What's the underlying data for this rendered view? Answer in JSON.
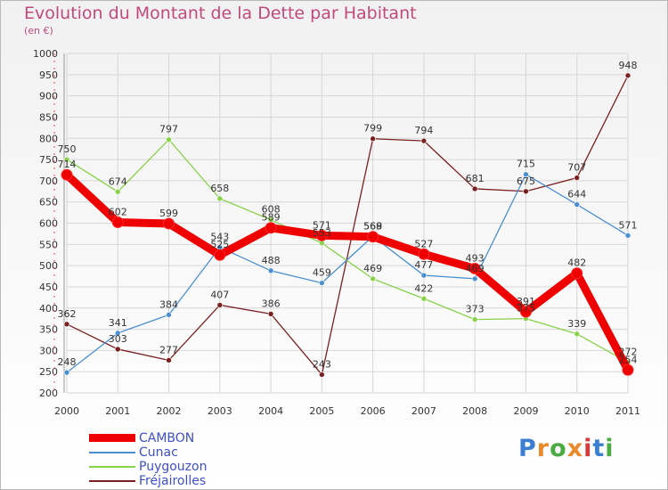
{
  "header": {
    "title": "Evolution du Montant de la Dette par Habitant",
    "unit": "(en €)"
  },
  "logo": {
    "text": "Proxiti",
    "colors": [
      "#3a7fd1",
      "#e9892b",
      "#4caa42",
      "#e9892b",
      "#d43b3b",
      "#3a7fd1",
      "#4caa42"
    ]
  },
  "chart_data": {
    "type": "line",
    "title": "Evolution du Montant de la Dette par Habitant",
    "subtitle": "(en €)",
    "x": [
      "2000",
      "2001",
      "2002",
      "2003",
      "2004",
      "2005",
      "2006",
      "2007",
      "2008",
      "2009",
      "2010",
      "2011"
    ],
    "ylim": [
      200,
      1000
    ],
    "yticks": [
      200,
      250,
      300,
      350,
      400,
      450,
      500,
      550,
      600,
      650,
      700,
      750,
      800,
      850,
      900,
      950,
      1000
    ],
    "grid": true,
    "legend": "bottom-left",
    "series": [
      {
        "name": "CAMBON",
        "color": "#ee0000",
        "values": [
          714,
          602,
          599,
          525,
          589,
          571,
          568,
          527,
          493,
          391,
          482,
          254
        ],
        "labels": [
          "714",
          "602",
          "599",
          "525",
          "589",
          "571",
          "568",
          "527",
          "493",
          "391",
          "482",
          "254"
        ]
      },
      {
        "name": "Cunac",
        "color": "#4a8fd0",
        "values": [
          248,
          341,
          384,
          543,
          488,
          459,
          569,
          477,
          469,
          715,
          644,
          571
        ],
        "labels": [
          "248",
          "341",
          "384",
          "543",
          "488",
          "459",
          "569",
          "477",
          "469",
          "715",
          "644",
          "571"
        ]
      },
      {
        "name": "Puygouzon",
        "color": "#88d24a",
        "values": [
          750,
          674,
          797,
          658,
          608,
          553,
          469,
          422,
          373,
          375,
          339,
          272
        ],
        "labels": [
          "750",
          "674",
          "797",
          "658",
          "608",
          "553",
          "469",
          "422",
          "373",
          "375",
          "339",
          "272"
        ]
      },
      {
        "name": "Fréjairolles",
        "color": "#7a2020",
        "values": [
          362,
          303,
          277,
          407,
          386,
          243,
          799,
          794,
          681,
          675,
          707,
          948
        ],
        "labels": [
          "362",
          "303",
          "277",
          "407",
          "386",
          "243",
          "799",
          "794",
          "681",
          "675",
          "707",
          "948"
        ]
      }
    ]
  }
}
